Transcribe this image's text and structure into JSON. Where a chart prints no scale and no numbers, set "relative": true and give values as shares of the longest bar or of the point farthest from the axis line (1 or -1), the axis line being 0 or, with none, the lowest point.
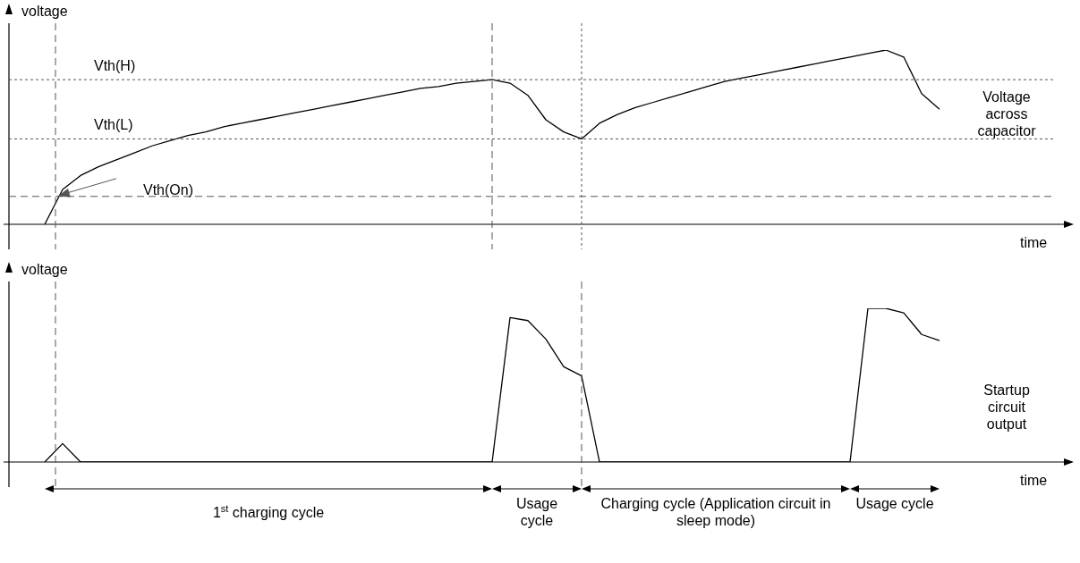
{
  "chart_data": [
    {
      "type": "line",
      "ylabel": "voltage",
      "xlabel": "time",
      "relative": true,
      "marker": "none",
      "categories": [
        null,
        null,
        null,
        null,
        null,
        null,
        null,
        null,
        null,
        null,
        null,
        null,
        null,
        null,
        null,
        null,
        null,
        null,
        null,
        null,
        null,
        null,
        null,
        null,
        null,
        null,
        null,
        null,
        null,
        null,
        null,
        null,
        null,
        null,
        null,
        null,
        null,
        null,
        null,
        null,
        null,
        null,
        null,
        null,
        null,
        null,
        null,
        null,
        null,
        null,
        null
      ],
      "series": [
        {
          "name": "Voltage across capacitor",
          "color": "#000000",
          "values": [
            0,
            0.2,
            0.28,
            0.33,
            0.37,
            0.41,
            0.45,
            0.48,
            0.51,
            0.53,
            0.56,
            0.58,
            0.6,
            0.62,
            0.64,
            0.66,
            0.68,
            0.7,
            0.72,
            0.74,
            0.76,
            0.78,
            0.79,
            0.81,
            0.82,
            0.83,
            0.81,
            0.74,
            0.6,
            0.53,
            0.49,
            0.58,
            0.63,
            0.67,
            0.7,
            0.73,
            0.76,
            0.79,
            0.82,
            0.84,
            0.86,
            0.88,
            0.9,
            0.92,
            0.94,
            0.96,
            0.98,
            1,
            0.96,
            0.75,
            0.66
          ]
        }
      ],
      "ref_lines": [
        {
          "axis": "y",
          "value": 0.83,
          "label": "Vth(H)",
          "line_style": "dotted",
          "color": "#555555"
        },
        {
          "axis": "y",
          "value": 0.49,
          "label": "Vth(L)",
          "line_style": "dotted",
          "color": "#555555"
        },
        {
          "axis": "y",
          "value": 0.16,
          "label": "Vth(On)",
          "line_style": "dashed",
          "color": "#555555"
        }
      ]
    },
    {
      "type": "line",
      "ylabel": "voltage",
      "xlabel": "time",
      "relative": true,
      "marker": "none",
      "categories": [
        null,
        null,
        null,
        null,
        null,
        null,
        null,
        null,
        null,
        null,
        null,
        null,
        null,
        null,
        null,
        null,
        null,
        null,
        null,
        null,
        null,
        null,
        null,
        null,
        null,
        null,
        null,
        null,
        null,
        null,
        null,
        null,
        null,
        null,
        null,
        null,
        null,
        null,
        null,
        null,
        null,
        null,
        null,
        null,
        null,
        null,
        null,
        null,
        null,
        null,
        null
      ],
      "series": [
        {
          "name": "Startup circuit output",
          "color": "#000000",
          "values": [
            0,
            0.12,
            0,
            0,
            0,
            0,
            0,
            0,
            0,
            0,
            0,
            0,
            0,
            0,
            0,
            0,
            0,
            0,
            0,
            0,
            0,
            0,
            0,
            0,
            0,
            0,
            0.94,
            0.92,
            0.8,
            0.62,
            0.56,
            0,
            0,
            0,
            0,
            0,
            0,
            0,
            0,
            0,
            0,
            0,
            0,
            0,
            0,
            0,
            1,
            1,
            0.97,
            0.83,
            0.79
          ]
        }
      ],
      "annotations": [
        "1$^{st}$ charging cycle",
        "Usage cycle",
        "Charging cycle (Application circuit in sleep mode)",
        "Usage cycle"
      ]
    }
  ]
}
